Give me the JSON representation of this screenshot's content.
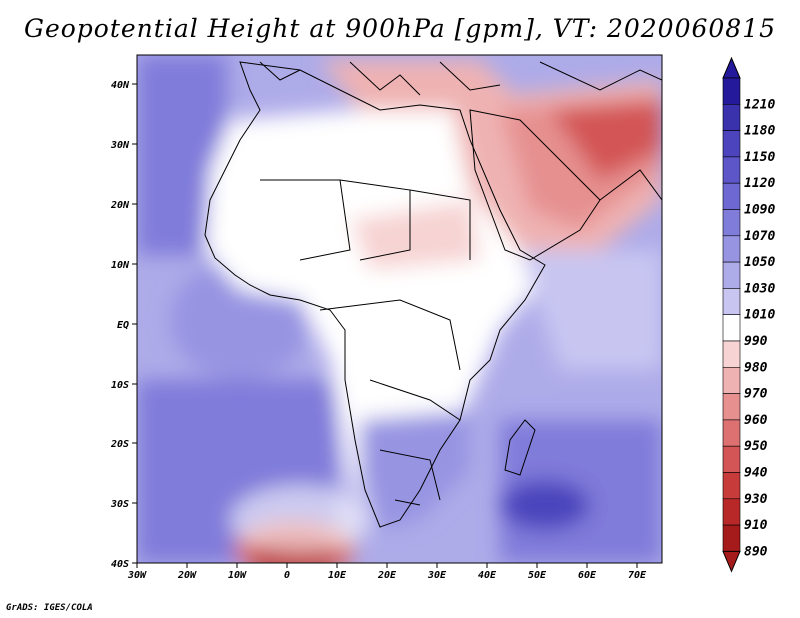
{
  "title": "Geopotential Height at 900hPa [gpm], VT: 2020060815",
  "footer": "GrADS: IGES/COLA",
  "map": {
    "region": "Africa and Middle East",
    "lat_labels": [
      "40N",
      "30N",
      "20N",
      "10N",
      "EQ",
      "10S",
      "20S",
      "30S",
      "40S"
    ],
    "lon_labels": [
      "30W",
      "20W",
      "10W",
      "0",
      "10E",
      "20E",
      "30E",
      "40E",
      "50E",
      "60E",
      "70E"
    ]
  },
  "colorbar": {
    "labels": [
      "1210",
      "1180",
      "1150",
      "1120",
      "1090",
      "1070",
      "1050",
      "1030",
      "1010",
      "990",
      "980",
      "970",
      "960",
      "950",
      "940",
      "930",
      "910",
      "890"
    ],
    "colors": [
      "#23199a",
      "#3a32ad",
      "#4b44bd",
      "#5c56c9",
      "#6e69d2",
      "#807cda",
      "#9794e2",
      "#aeabe9",
      "#c8c6f1",
      "#ffffff",
      "#f7d3d3",
      "#efb2b2",
      "#e69090",
      "#dd7171",
      "#d35555",
      "#c83b3b",
      "#b82828",
      "#a51a1a"
    ],
    "unit": "gpm"
  }
}
